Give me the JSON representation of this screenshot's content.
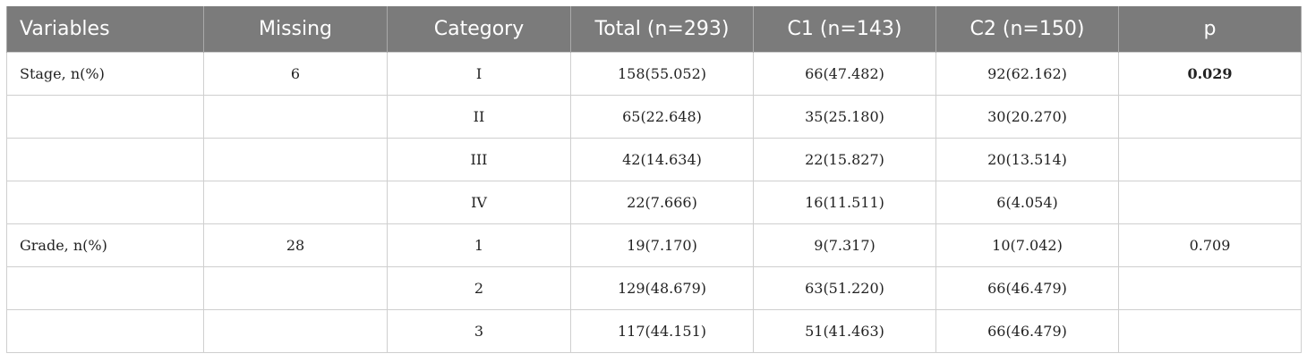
{
  "table": {
    "headers": [
      "Variables",
      "Missing",
      "Category",
      "Total (n=293)",
      "C1 (n=143)",
      "C2 (n=150)",
      "p"
    ],
    "rows": [
      {
        "variable": "Stage, n(%)",
        "missing": "6",
        "category": "I",
        "total": "158(55.052)",
        "c1": "66(47.482)",
        "c2": "92(62.162)",
        "p": "0.029",
        "p_bold": true
      },
      {
        "variable": "",
        "missing": "",
        "category": "II",
        "total": "65(22.648)",
        "c1": "35(25.180)",
        "c2": "30(20.270)",
        "p": ""
      },
      {
        "variable": "",
        "missing": "",
        "category": "III",
        "total": "42(14.634)",
        "c1": "22(15.827)",
        "c2": "20(13.514)",
        "p": ""
      },
      {
        "variable": "",
        "missing": "",
        "category": "IV",
        "total": "22(7.666)",
        "c1": "16(11.511)",
        "c2": "6(4.054)",
        "p": ""
      },
      {
        "variable": "Grade, n(%)",
        "missing": "28",
        "category": "1",
        "total": "19(7.170)",
        "c1": "9(7.317)",
        "c2": "10(7.042)",
        "p": "0.709"
      },
      {
        "variable": "",
        "missing": "",
        "category": "2",
        "total": "129(48.679)",
        "c1": "63(51.220)",
        "c2": "66(46.479)",
        "p": ""
      },
      {
        "variable": "",
        "missing": "",
        "category": "3",
        "total": "117(44.151)",
        "c1": "51(41.463)",
        "c2": "66(46.479)",
        "p": ""
      }
    ]
  },
  "colors": {
    "header_bg": "#7b7b7b",
    "header_text": "#ffffff",
    "grid_line": "#cfcfcf"
  }
}
